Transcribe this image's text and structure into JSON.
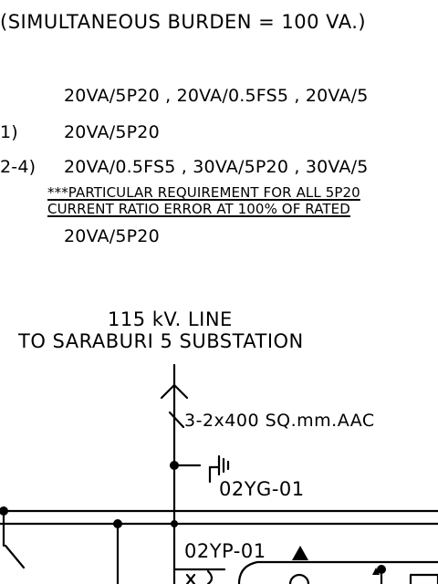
{
  "header_burden": "(SIMULTANEOUS BURDEN = 100 VA.)",
  "ct_ratings": [
    {
      "prefix": "",
      "value": "20VA/5P20 , 20VA/0.5FS5 , 20VA/5"
    },
    {
      "prefix": "1)",
      "value": "20VA/5P20"
    },
    {
      "prefix": "2-4)",
      "value": "20VA/0.5FS5 , 30VA/5P20 , 30VA/5"
    }
  ],
  "requirement_note": [
    "***PARTICULAR REQUIREMENT FOR ALL 5P20",
    "CURRENT RATIO ERROR AT 100% OF RATED"
  ],
  "extra_rating": "20VA/5P20",
  "line": {
    "voltage": "115 kV. LINE",
    "destination": "TO SARABURI 5 SUBSTATION"
  },
  "conductor": "3-2x400 SQ.mm.AAC",
  "ground_switch": "02YG-01",
  "potential_transformer": "02YP-01",
  "colors": {
    "ink": "#000000",
    "paper": "#ffffff"
  }
}
